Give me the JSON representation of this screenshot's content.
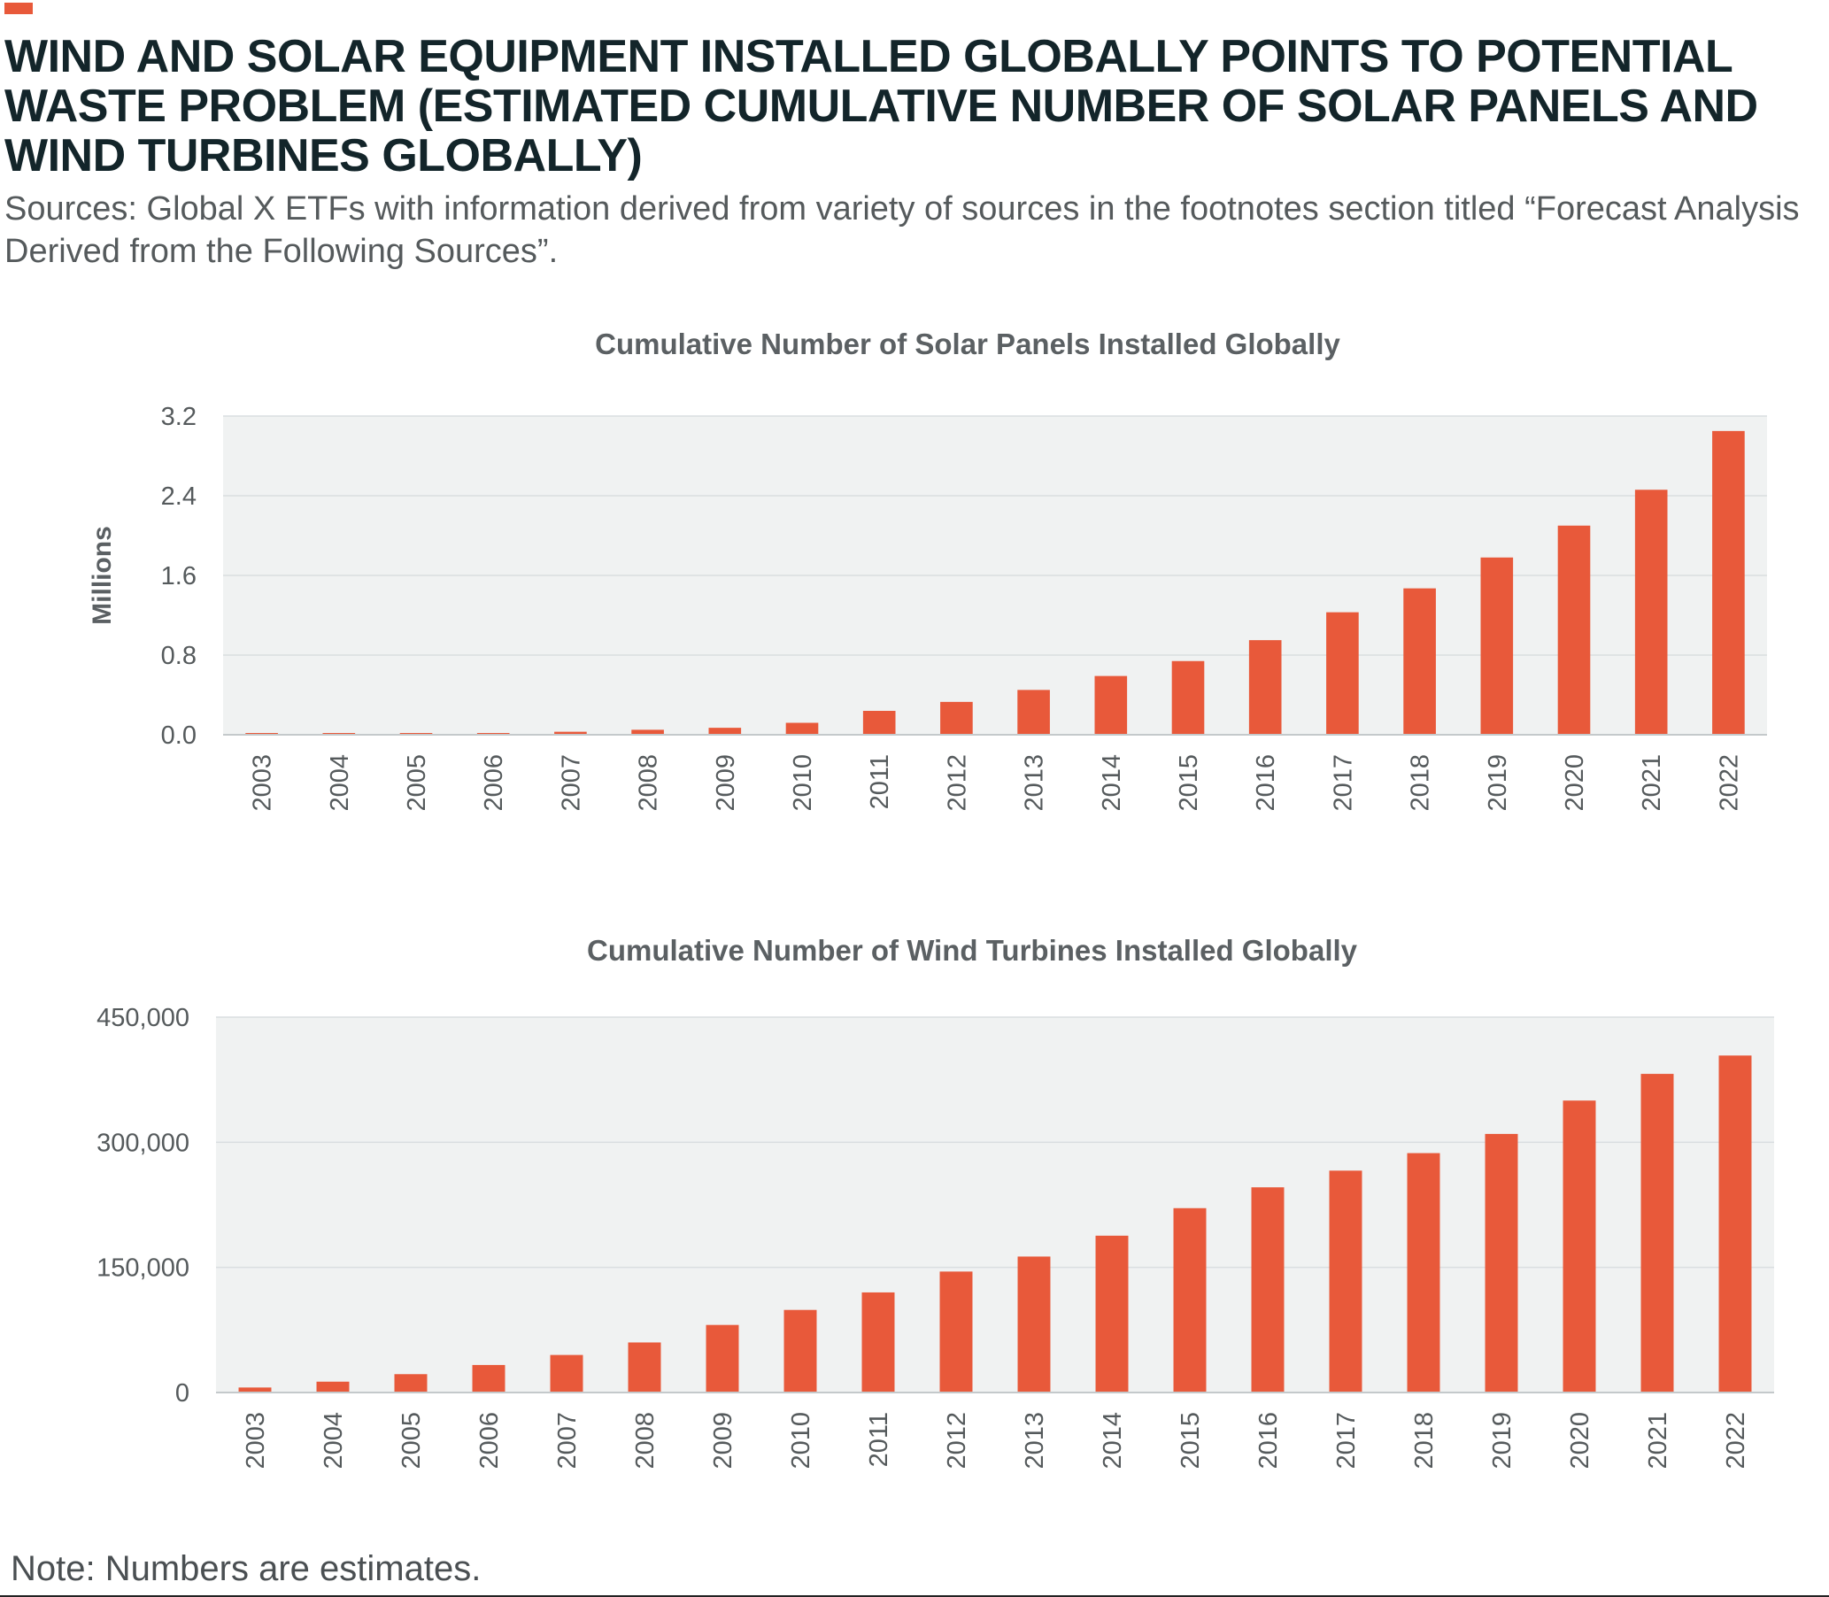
{
  "header": {
    "title": "WIND AND SOLAR EQUIPMENT INSTALLED GLOBALLY POINTS TO POTENTIAL WASTE PROBLEM (ESTIMATED CUMULATIVE NUMBER OF SOLAR PANELS AND WIND TURBINES GLOBALLY)",
    "sources": "Sources: Global X ETFs with information derived from variety of sources in the footnotes section titled “Forecast Analysis Derived from the Following Sources”."
  },
  "footer": {
    "note": "Note: Numbers are estimates."
  },
  "colors": {
    "accent": "#e8593a",
    "bar": "#e8593a",
    "plot_bg": "#f0f2f2",
    "grid": "#d9dee0",
    "title": "#13252a",
    "text": "#555a5c"
  },
  "chart_data": [
    {
      "type": "bar",
      "title": "Cumulative Number of Solar Panels Installed Globally",
      "xlabel": "",
      "ylabel": "Millions",
      "categories": [
        "2003",
        "2004",
        "2005",
        "2006",
        "2007",
        "2008",
        "2009",
        "2010",
        "2011",
        "2012",
        "2013",
        "2014",
        "2015",
        "2016",
        "2017",
        "2018",
        "2019",
        "2020",
        "2021",
        "2022"
      ],
      "values": [
        0.01,
        0.01,
        0.01,
        0.01,
        0.03,
        0.05,
        0.07,
        0.12,
        0.24,
        0.33,
        0.45,
        0.59,
        0.74,
        0.95,
        1.23,
        1.47,
        1.78,
        2.1,
        2.46,
        3.05
      ],
      "ylim": [
        0,
        3.2
      ],
      "yticks": [
        0,
        0.8,
        1.6,
        2.4,
        3.2
      ],
      "ytick_labels": [
        "0.0",
        "0.8",
        "1.6",
        "2.4",
        "3.2"
      ],
      "grid": true,
      "legend": "none"
    },
    {
      "type": "bar",
      "title": "Cumulative Number of Wind Turbines Installed Globally",
      "xlabel": "",
      "ylabel": "",
      "categories": [
        "2003",
        "2004",
        "2005",
        "2006",
        "2007",
        "2008",
        "2009",
        "2010",
        "2011",
        "2012",
        "2013",
        "2014",
        "2015",
        "2016",
        "2017",
        "2018",
        "2019",
        "2020",
        "2021",
        "2022"
      ],
      "values": [
        6000,
        13000,
        22000,
        33000,
        45000,
        60000,
        81000,
        99000,
        120000,
        145000,
        163000,
        188000,
        221000,
        246000,
        266000,
        287000,
        310000,
        350000,
        382000,
        404000
      ],
      "ylim": [
        0,
        450000
      ],
      "yticks": [
        0,
        150000,
        300000,
        450000
      ],
      "ytick_labels": [
        "0",
        "150,000",
        "300,000",
        "450,000"
      ],
      "grid": true,
      "legend": "none"
    }
  ]
}
